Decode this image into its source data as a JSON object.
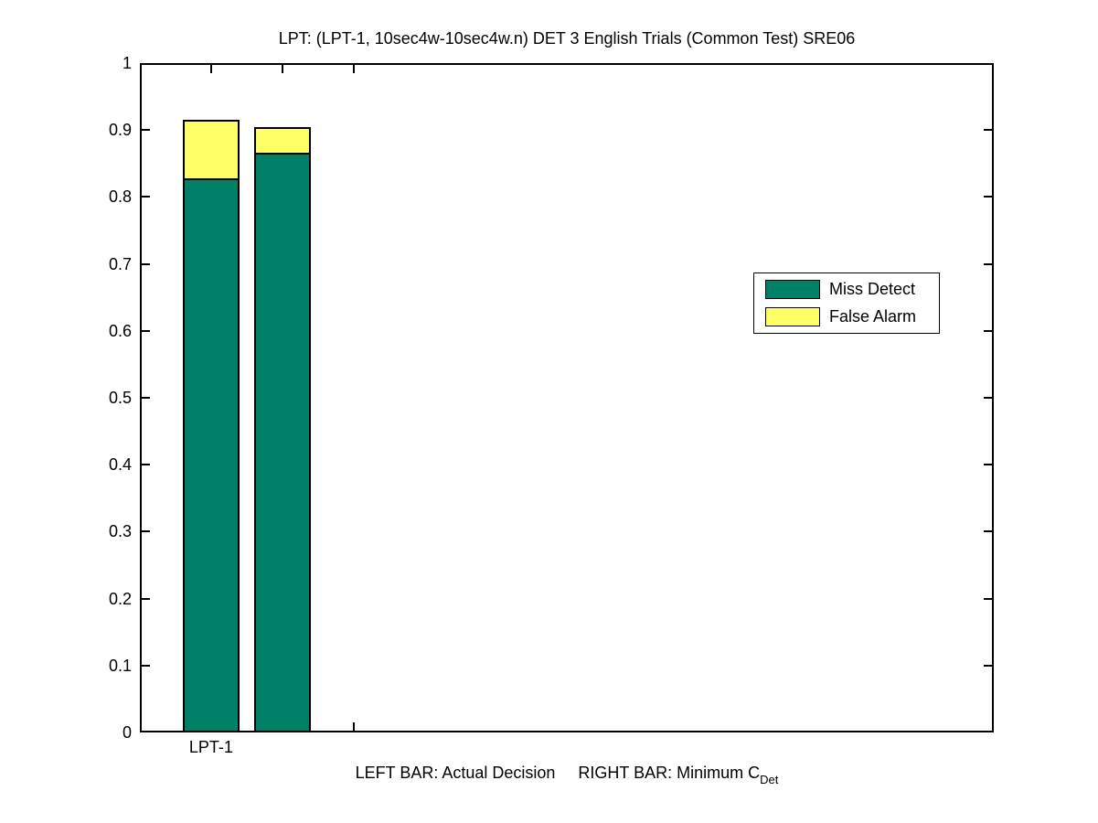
{
  "figure": {
    "background": "#ffffff"
  },
  "chart_data": {
    "type": "bar",
    "stacked": true,
    "title": "LPT: (LPT-1, 10sec4w-10sec4w.n) DET 3 English Trials (Common Test) SRE06",
    "xlabel": {
      "left_text": "LEFT BAR: Actual Decision",
      "right_text": "RIGHT BAR: Minimum C",
      "right_subscript": "Det"
    },
    "ylabel": "",
    "ylim": [
      0,
      1
    ],
    "yticks": [
      "0",
      "0.1",
      "0.2",
      "0.3",
      "0.4",
      "0.5",
      "0.6",
      "0.7",
      "0.8",
      "0.9",
      "1"
    ],
    "xlim": [
      0.5,
      6.5
    ],
    "xticks": [
      {
        "x": 1.0,
        "label": "LPT-1"
      },
      {
        "x": 1.5,
        "label": ""
      },
      {
        "x": 2.0,
        "label": ""
      }
    ],
    "categories": [
      "LPT-1"
    ],
    "bar_width": 0.4,
    "bars": [
      {
        "id": "actual-decision",
        "meaning": "Actual Decision",
        "x": 1.0,
        "miss_detect": 0.828,
        "false_alarm": 0.087
      },
      {
        "id": "minimum-cdet",
        "meaning": "Minimum C_Det",
        "x": 1.5,
        "miss_detect": 0.866,
        "false_alarm": 0.039
      }
    ],
    "legend": {
      "position": "right-middle",
      "items": [
        {
          "id": "miss-detect",
          "label": "Miss Detect",
          "color": "#008066"
        },
        {
          "id": "false-alarm",
          "label": "False Alarm",
          "color": "#ffff66"
        }
      ]
    },
    "colors": {
      "miss_detect": "#008066",
      "false_alarm": "#ffff66",
      "axis": "#000000",
      "background": "#ffffff"
    },
    "grid": false
  }
}
